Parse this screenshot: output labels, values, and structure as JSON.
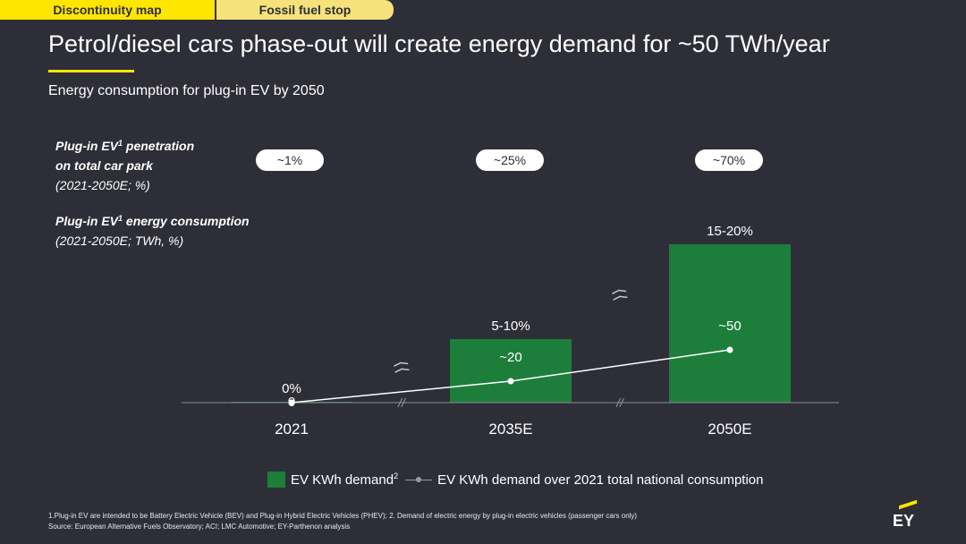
{
  "tabs": [
    {
      "label": "Discontinuity map"
    },
    {
      "label": "Fossil fuel stop"
    }
  ],
  "title": "Petrol/diesel cars phase-out will create energy demand for ~50 TWh/year",
  "subtitle": "Energy consumption for plug-in EV by 2050",
  "penetration_label": {
    "line1_a": "Plug-in EV",
    "line1_sup": "1",
    "line1_b": " penetration",
    "line2": "on total car park",
    "line3": "(2021-2050E; %)"
  },
  "consumption_label": {
    "line1_a": "Plug-in EV",
    "line1_sup": "1",
    "line1_b": " energy consumption",
    "line2": "(2021-2050E; TWh, %)"
  },
  "penetration_pills": [
    "~1%",
    "~25%",
    "~70%"
  ],
  "chart_data": {
    "type": "bar",
    "categories": [
      "2021",
      "2035E",
      "2050E"
    ],
    "series": [
      {
        "name": "EV KWh demand",
        "type": "bar",
        "values": [
          0.5,
          20,
          50
        ],
        "labels": [
          "0%",
          "5-10%",
          "15-20%"
        ],
        "color": "#1d7e3c"
      },
      {
        "name": "EV KWh demand over 2021 total national consumption",
        "type": "line",
        "values": [
          0,
          20,
          50
        ],
        "labels": [
          "0",
          "~20",
          "~50"
        ],
        "color": "#ffffff"
      }
    ],
    "axis_breaks": [
      "//",
      "//"
    ],
    "bar_breaks": [
      "⟨⟨",
      "⟨⟨"
    ]
  },
  "legend": {
    "bar_label": "EV KWh demand",
    "bar_sup": "2",
    "line_label": "EV KWh demand over 2021 total national consumption"
  },
  "footnotes": [
    "1.Plug-in EV are intended to be Battery Electric Vehicle (BEV) and Plug-in Hybrid Electric Vehicles (PHEV); 2. Demand of electric energy by plug-in electric vehicles (passenger cars only)",
    "Source: European Alternative Fuels Observatory; ACI; LMC Automotive; EY-Parthenon analysis"
  ],
  "logo": "EY",
  "colors": {
    "background": "#2e2e38",
    "accent": "#ffe600",
    "bar": "#1d7e3c"
  }
}
